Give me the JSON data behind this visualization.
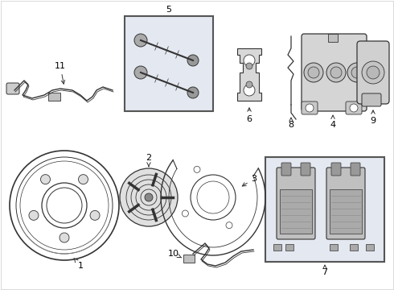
{
  "bg_color": "#ffffff",
  "line_color": "#333333",
  "label_color": "#000000",
  "box_fill": "#e8eaf0",
  "box_edge": "#666666",
  "figsize": [
    4.9,
    3.6
  ],
  "dpi": 100
}
